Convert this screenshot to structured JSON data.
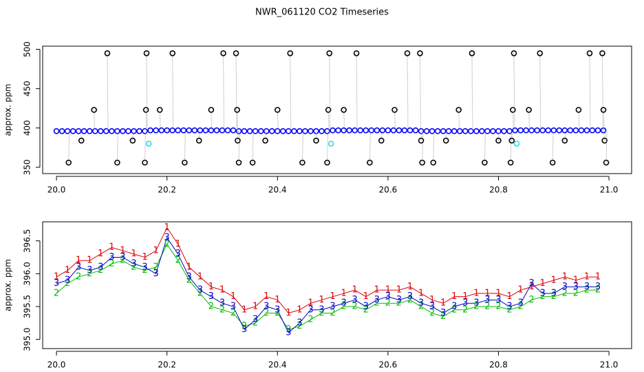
{
  "chart_data": [
    {
      "type": "scatter",
      "title": "NWR_061120  CO2 Timeseries",
      "ylabel": "approx. ppm",
      "xlim": [
        19.975,
        21.041
      ],
      "ylim": [
        342,
        504
      ],
      "xticks": [
        {
          "value": 20,
          "label": "20.0"
        },
        20.2,
        20.4,
        20.6,
        20.8,
        {
          "value": 21,
          "label": "21.0"
        }
      ],
      "yticks": [
        350,
        400,
        450,
        500
      ],
      "series": [
        {
          "color": "#0000ff",
          "drop_lines": false,
          "x": [
            20.0,
            20.01,
            20.02,
            20.03,
            20.04,
            20.05,
            20.06,
            20.07,
            20.08,
            20.09,
            20.1,
            20.11,
            20.12,
            20.13,
            20.14,
            20.15,
            20.16,
            20.17,
            20.18,
            20.19,
            20.2,
            20.21,
            20.22,
            20.23,
            20.24,
            20.25,
            20.26,
            20.27,
            20.28,
            20.29,
            20.3,
            20.31,
            20.32,
            20.33,
            20.34,
            20.35,
            20.36,
            20.37,
            20.38,
            20.39,
            20.4,
            20.41,
            20.42,
            20.43,
            20.44,
            20.45,
            20.46,
            20.47,
            20.48,
            20.49,
            20.5,
            20.51,
            20.52,
            20.53,
            20.54,
            20.55,
            20.56,
            20.57,
            20.58,
            20.59,
            20.6,
            20.61,
            20.62,
            20.63,
            20.64,
            20.65,
            20.66,
            20.67,
            20.68,
            20.69,
            20.7,
            20.71,
            20.72,
            20.73,
            20.74,
            20.75,
            20.76,
            20.77,
            20.78,
            20.79,
            20.8,
            20.81,
            20.82,
            20.83,
            20.84,
            20.85,
            20.86,
            20.87,
            20.88,
            20.89,
            20.9,
            20.91,
            20.92,
            20.93,
            20.94,
            20.95,
            20.96,
            20.97,
            20.98,
            20.99
          ],
          "values": [
            396,
            396,
            396,
            396,
            396,
            396,
            396,
            396,
            396,
            396,
            396,
            396,
            396,
            396,
            396,
            396,
            396,
            397,
            397,
            397,
            397,
            397,
            397,
            397,
            397,
            397,
            397,
            397,
            397,
            397,
            397,
            397,
            397,
            396,
            396,
            396,
            396,
            396,
            396,
            396,
            396,
            396,
            396,
            396,
            396,
            396,
            396,
            396,
            396,
            396,
            397,
            397,
            397,
            397,
            397,
            397,
            397,
            397,
            397,
            397,
            397,
            397,
            397,
            397,
            397,
            397,
            396,
            396,
            396,
            396,
            396,
            396,
            396,
            396,
            396,
            396,
            396,
            396,
            396,
            396,
            396,
            396,
            396,
            397,
            397,
            397,
            397,
            397,
            397,
            397,
            397,
            397,
            397,
            397,
            397,
            397,
            397,
            397,
            397,
            397
          ]
        },
        {
          "color": "#000000",
          "drop_lines": true,
          "x": [
            20.022,
            20.045,
            20.068,
            20.092,
            20.11,
            20.138,
            20.16,
            20.162,
            20.163,
            20.187,
            20.21,
            20.232,
            20.258,
            20.28,
            20.302,
            20.325,
            20.327,
            20.328,
            20.33,
            20.355,
            20.378,
            20.4,
            20.423,
            20.445,
            20.47,
            20.49,
            20.492,
            20.494,
            20.52,
            20.543,
            20.567,
            20.588,
            20.612,
            20.635,
            20.658,
            20.66,
            20.662,
            20.682,
            20.705,
            20.728,
            20.752,
            20.775,
            20.8,
            20.822,
            20.824,
            20.826,
            20.828,
            20.855,
            20.875,
            20.898,
            20.92,
            20.945,
            20.965,
            20.988,
            20.99,
            20.992,
            20.995
          ],
          "values": [
            356,
            384,
            423,
            495,
            356,
            384,
            356,
            423,
            495,
            423,
            495,
            356,
            384,
            423,
            495,
            495,
            423,
            384,
            356,
            356,
            384,
            423,
            495,
            356,
            384,
            356,
            423,
            495,
            423,
            495,
            356,
            384,
            423,
            495,
            495,
            384,
            356,
            356,
            384,
            423,
            495,
            356,
            384,
            356,
            384,
            423,
            495,
            423,
            495,
            356,
            384,
            423,
            495,
            495,
            423,
            384,
            356
          ]
        },
        {
          "color": "#33dddd",
          "drop_lines": false,
          "x": [
            20.167,
            20.497,
            20.833
          ],
          "values": [
            380,
            380,
            380
          ]
        }
      ]
    },
    {
      "type": "line",
      "ylabel": "approx. ppm",
      "xlim": [
        19.975,
        21.041
      ],
      "ylim": [
        394.86,
        396.79
      ],
      "xticks": [
        {
          "value": 20,
          "label": "20.0"
        },
        20.2,
        20.4,
        20.6,
        20.8,
        {
          "value": 21,
          "label": "21.0"
        }
      ],
      "yticks": [
        {
          "value": 395,
          "label": "395.0"
        },
        395.5,
        {
          "value": 396,
          "label": "396.0"
        },
        396.5
      ],
      "x": [
        20.0,
        20.02,
        20.04,
        20.06,
        20.08,
        20.1,
        20.12,
        20.14,
        20.16,
        20.18,
        20.2,
        20.22,
        20.24,
        20.26,
        20.28,
        20.3,
        20.32,
        20.34,
        20.36,
        20.38,
        20.4,
        20.42,
        20.44,
        20.46,
        20.48,
        20.5,
        20.52,
        20.54,
        20.56,
        20.58,
        20.6,
        20.62,
        20.64,
        20.66,
        20.68,
        20.7,
        20.72,
        20.74,
        20.76,
        20.78,
        20.8,
        20.82,
        20.84,
        20.86,
        20.88,
        20.9,
        20.92,
        20.94,
        20.96,
        20.98
      ],
      "series": [
        {
          "marker": "1",
          "color": "#dd0000",
          "values": [
            395.95,
            396.05,
            396.2,
            396.2,
            396.3,
            396.4,
            396.35,
            396.3,
            396.25,
            396.35,
            396.7,
            396.45,
            396.1,
            395.95,
            395.8,
            395.75,
            395.65,
            395.45,
            395.5,
            395.65,
            395.6,
            395.4,
            395.45,
            395.55,
            395.6,
            395.65,
            395.7,
            395.75,
            395.65,
            395.75,
            395.75,
            395.75,
            395.8,
            395.7,
            395.6,
            395.55,
            395.65,
            395.65,
            395.7,
            395.7,
            395.7,
            395.65,
            395.75,
            395.8,
            395.85,
            395.9,
            395.95,
            395.9,
            395.95,
            395.95
          ]
        },
        {
          "marker": "2",
          "color": "#00bb00",
          "values": [
            395.7,
            395.85,
            395.95,
            396.0,
            396.05,
            396.15,
            396.2,
            396.1,
            396.05,
            396.1,
            396.45,
            396.2,
            395.9,
            395.7,
            395.5,
            395.45,
            395.4,
            395.2,
            395.25,
            395.4,
            395.4,
            395.15,
            395.2,
            395.3,
            395.4,
            395.4,
            395.5,
            395.5,
            395.45,
            395.55,
            395.55,
            395.55,
            395.6,
            395.5,
            395.4,
            395.35,
            395.45,
            395.45,
            395.5,
            395.5,
            395.5,
            395.45,
            395.5,
            395.6,
            395.65,
            395.65,
            395.7,
            395.7,
            395.75,
            395.75
          ]
        },
        {
          "marker": "3",
          "color": "#0000cc",
          "values": [
            395.85,
            395.9,
            396.1,
            396.05,
            396.1,
            396.25,
            396.25,
            396.15,
            396.1,
            396.0,
            396.55,
            396.3,
            395.95,
            395.75,
            395.65,
            395.55,
            395.5,
            395.15,
            395.3,
            395.5,
            395.45,
            395.1,
            395.25,
            395.45,
            395.45,
            395.5,
            395.55,
            395.6,
            395.5,
            395.6,
            395.65,
            395.6,
            395.65,
            395.55,
            395.5,
            395.4,
            395.5,
            395.55,
            395.55,
            395.6,
            395.6,
            395.5,
            395.55,
            395.85,
            395.7,
            395.7,
            395.8,
            395.8,
            395.8,
            395.8
          ]
        }
      ]
    }
  ]
}
